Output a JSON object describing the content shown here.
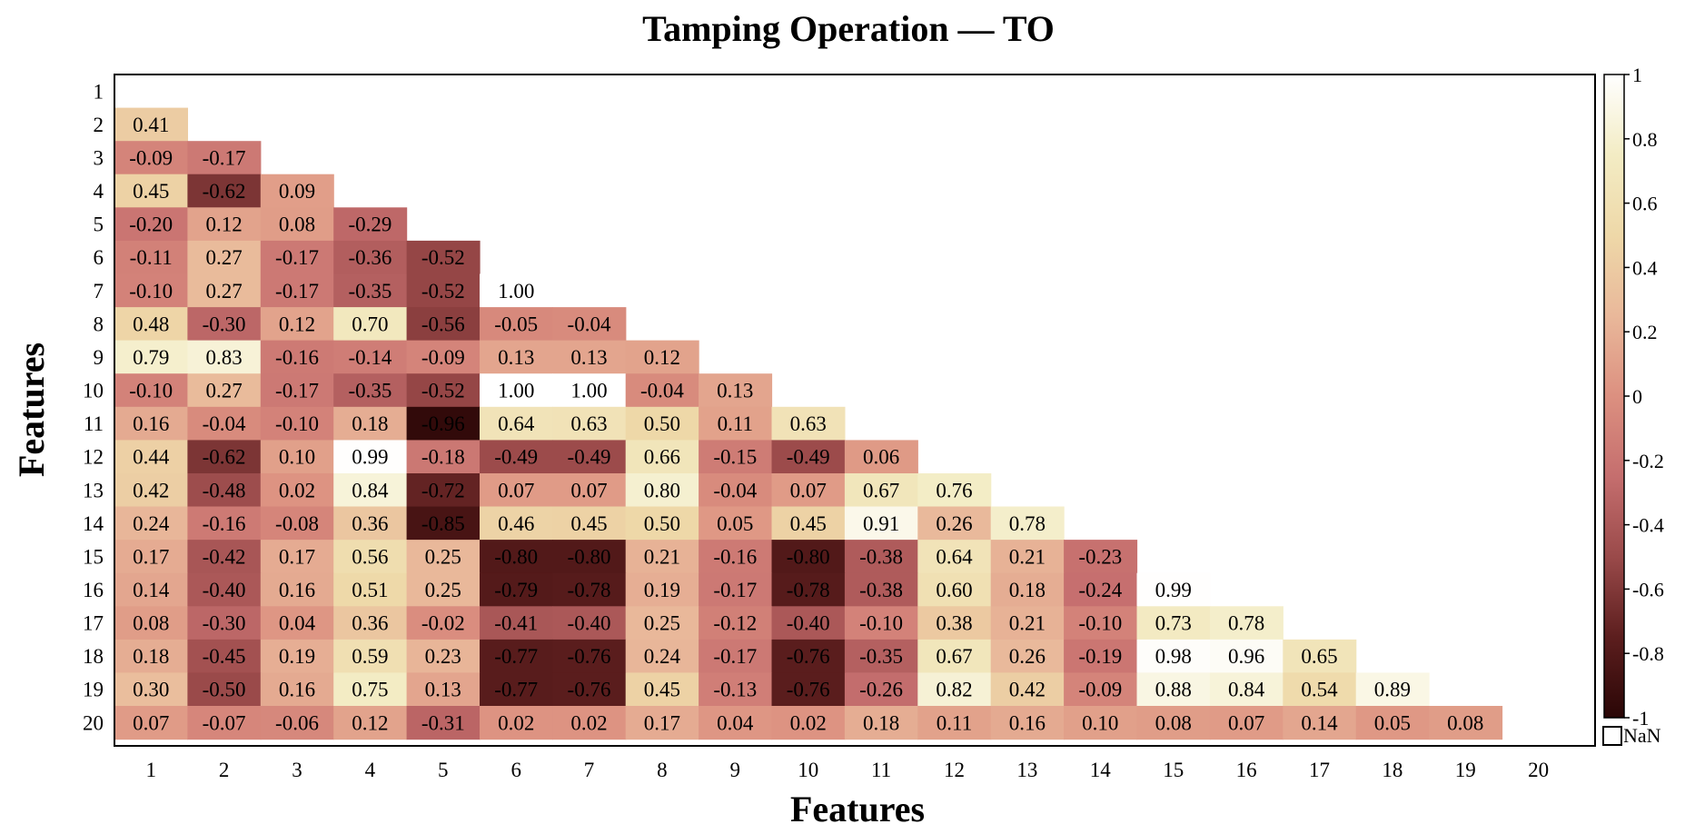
{
  "chart_data": {
    "type": "heatmap",
    "title": "Tamping Operation — TO",
    "xlabel": "Features",
    "ylabel": "Features",
    "x_categories": [
      "1",
      "2",
      "3",
      "4",
      "5",
      "6",
      "7",
      "8",
      "9",
      "10",
      "11",
      "12",
      "13",
      "14",
      "15",
      "16",
      "17",
      "18",
      "19",
      "20"
    ],
    "y_categories": [
      "1",
      "2",
      "3",
      "4",
      "5",
      "6",
      "7",
      "8",
      "9",
      "10",
      "11",
      "12",
      "13",
      "14",
      "15",
      "16",
      "17",
      "18",
      "19",
      "20"
    ],
    "lower_triangle": [
      [],
      [
        "0.41"
      ],
      [
        "-0.09",
        "-0.17"
      ],
      [
        "0.45",
        "-0.62",
        "0.09"
      ],
      [
        "-0.20",
        "0.12",
        "0.08",
        "-0.29"
      ],
      [
        "-0.11",
        "0.27",
        "-0.17",
        "-0.36",
        "-0.52"
      ],
      [
        "-0.10",
        "0.27",
        "-0.17",
        "-0.35",
        "-0.52",
        "1.00"
      ],
      [
        "0.48",
        "-0.30",
        "0.12",
        "0.70",
        "-0.56",
        "-0.05",
        "-0.04"
      ],
      [
        "0.79",
        "0.83",
        "-0.16",
        "-0.14",
        "-0.09",
        "0.13",
        "0.13",
        "0.12"
      ],
      [
        "-0.10",
        "0.27",
        "-0.17",
        "-0.35",
        "-0.52",
        "1.00",
        "1.00",
        "-0.04",
        "0.13"
      ],
      [
        "0.16",
        "-0.04",
        "-0.10",
        "0.18",
        "-0.96",
        "0.64",
        "0.63",
        "0.50",
        "0.11",
        "0.63"
      ],
      [
        "0.44",
        "-0.62",
        "0.10",
        "0.99",
        "-0.18",
        "-0.49",
        "-0.49",
        "0.66",
        "-0.15",
        "-0.49",
        "0.06"
      ],
      [
        "0.42",
        "-0.48",
        "0.02",
        "0.84",
        "-0.72",
        "0.07",
        "0.07",
        "0.80",
        "-0.04",
        "0.07",
        "0.67",
        "0.76"
      ],
      [
        "0.24",
        "-0.16",
        "-0.08",
        "0.36",
        "-0.85",
        "0.46",
        "0.45",
        "0.50",
        "0.05",
        "0.45",
        "0.91",
        "0.26",
        "0.78"
      ],
      [
        "0.17",
        "-0.42",
        "0.17",
        "0.56",
        "0.25",
        "-0.80",
        "-0.80",
        "0.21",
        "-0.16",
        "-0.80",
        "-0.38",
        "0.64",
        "0.21",
        "-0.23"
      ],
      [
        "0.14",
        "-0.40",
        "0.16",
        "0.51",
        "0.25",
        "-0.79",
        "-0.78",
        "0.19",
        "-0.17",
        "-0.78",
        "-0.38",
        "0.60",
        "0.18",
        "-0.24",
        "0.99"
      ],
      [
        "0.08",
        "-0.30",
        "0.04",
        "0.36",
        "-0.02",
        "-0.41",
        "-0.40",
        "0.25",
        "-0.12",
        "-0.40",
        "-0.10",
        "0.38",
        "0.21",
        "-0.10",
        "0.73",
        "0.78"
      ],
      [
        "0.18",
        "-0.45",
        "0.19",
        "0.59",
        "0.23",
        "-0.77",
        "-0.76",
        "0.24",
        "-0.17",
        "-0.76",
        "-0.35",
        "0.67",
        "0.26",
        "-0.19",
        "0.98",
        "0.96",
        "0.65"
      ],
      [
        "0.30",
        "-0.50",
        "0.16",
        "0.75",
        "0.13",
        "-0.77",
        "-0.76",
        "0.45",
        "-0.13",
        "-0.76",
        "-0.26",
        "0.82",
        "0.42",
        "-0.09",
        "0.88",
        "0.84",
        "0.54",
        "0.89"
      ],
      [
        "0.07",
        "-0.07",
        "-0.06",
        "0.12",
        "-0.31",
        "0.02",
        "0.02",
        "0.17",
        "0.04",
        "0.02",
        "0.18",
        "0.11",
        "0.16",
        "0.10",
        "0.08",
        "0.07",
        "0.14",
        "0.05",
        "0.08"
      ]
    ],
    "colorbar": {
      "range": [
        -1,
        1
      ],
      "tick_labels": [
        "1",
        "0.8",
        "0.6",
        "0.4",
        "0.2",
        "0",
        "-0.2",
        "-0.4",
        "-0.6",
        "-0.8",
        "-1"
      ],
      "nan_label": "NaN"
    },
    "colormap": [
      "#2a0606",
      "#5c1e1e",
      "#9a4a4a",
      "#c56e6e",
      "#dc9080",
      "#e9b89a",
      "#eed8a8",
      "#f3ecc4",
      "#ffffff"
    ]
  }
}
